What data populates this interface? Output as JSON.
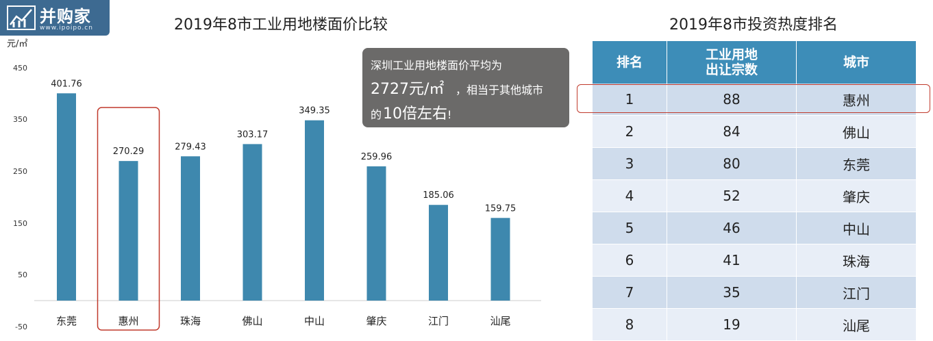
{
  "logo": {
    "name": "并购家",
    "site": "www.ipoipo.cn",
    "bg_color": "#3d6a91"
  },
  "chart_data": {
    "type": "bar",
    "title": "2019年8市工业用地楼面价比较",
    "unit": "元/㎡",
    "categories": [
      "东莞",
      "惠州",
      "珠海",
      "佛山",
      "中山",
      "肇庆",
      "江门",
      "汕尾"
    ],
    "values": [
      401.76,
      270.29,
      279.43,
      303.17,
      349.35,
      259.96,
      185.06,
      159.75
    ],
    "value_labels": [
      "401.76",
      "270.29",
      "279.43",
      "303.17",
      "349.35",
      "259.96",
      "185.06",
      "159.75"
    ],
    "yticks": [
      "450",
      "350",
      "250",
      "150",
      "50",
      "-50"
    ],
    "ylim": [
      -50,
      450
    ],
    "highlight_category": "惠州",
    "bar_color": "#3e88ae",
    "highlight_color": "#c0392b"
  },
  "callout": {
    "line1": "深圳工业用地楼面价平均为",
    "line2_big": "2727元/㎡",
    "line2_small": "，相当于其他城市",
    "line3_prefix": "的",
    "line3_big": "10倍左右",
    "line3_suffix": "!"
  },
  "table": {
    "title": "2019年8市投资热度排名",
    "headers": [
      "排名",
      "工业用地\n出让宗数",
      "城市"
    ],
    "rows": [
      [
        "1",
        "88",
        "惠州"
      ],
      [
        "2",
        "84",
        "佛山"
      ],
      [
        "3",
        "80",
        "东莞"
      ],
      [
        "4",
        "52",
        "肇庆"
      ],
      [
        "5",
        "46",
        "中山"
      ],
      [
        "6",
        "41",
        "珠海"
      ],
      [
        "7",
        "35",
        "江门"
      ],
      [
        "8",
        "19",
        "汕尾"
      ]
    ],
    "header_color": "#3d8db8"
  }
}
